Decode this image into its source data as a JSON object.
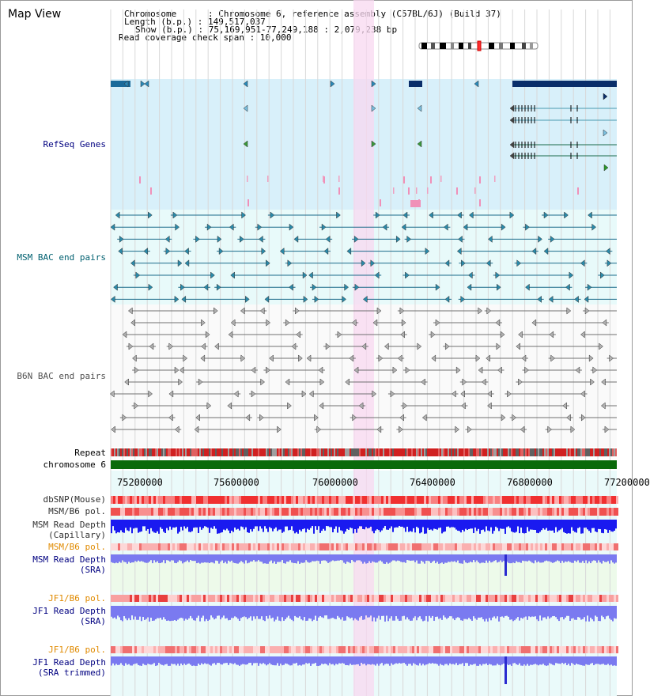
{
  "header": {
    "title": "Map View",
    "info_lines": [
      "Chromosome      : Chromosome 6, reference assembly (C57BL/6J) (Build 37)",
      "Length (b.p.) : 149,517,037",
      "Show (b.p.) : 75,169,951-77,249,188 : 2,079,238 bp",
      "Read coverage check span : 10,000"
    ]
  },
  "tracks": {
    "refseq_label": "RefSeq Genes",
    "msm_bac_label": "MSM BAC end pairs",
    "b6n_bac_label": "B6N BAC end pairs",
    "repeat_label": "Repeat",
    "chromosome_label": "chromosome 6",
    "dbsnp_label": "dbSNP(Mouse)",
    "msm_b6_pol_label": "MSM/B6 pol.",
    "msm_read_depth_cap_label": "MSM Read Depth",
    "msm_read_depth_cap_sub": "(Capillary)",
    "msm_b6_pol_label2": "MSM/B6 pol.",
    "msm_read_depth_sra_label": "MSM Read Depth",
    "msm_read_depth_sra_sub": "(SRA)",
    "jf1_b6_pol_label": "JF1/B6 pol.",
    "jf1_read_depth_sra_label": "JF1 Read Depth",
    "jf1_read_depth_sra_sub": "(SRA)",
    "jf1_b6_pol_label2": "JF1/B6 pol.",
    "jf1_read_depth_trim_label": "JF1 Read Depth",
    "jf1_read_depth_trim_sub": "(SRA trimmed)"
  },
  "axis": {
    "ticks": [
      "75200000",
      "75600000",
      "76000000",
      "76400000",
      "76800000",
      "77200000"
    ]
  },
  "colors": {
    "refseq_bg": "#d8f0fa",
    "bac_bg": "#e8fafa",
    "highlight": "#f8d8f0",
    "msm_bac": "#1a6a8a",
    "b6n_bac": "#707070",
    "refseq_dark": "#0a2e6a",
    "chromosome": "#0a6a0a",
    "label_blue": "#000080",
    "label_teal": "#006070",
    "label_grey": "#505050",
    "label_orange": "#e08a00",
    "depth_blue": "#1a1af0",
    "depth_light": "#7a7af0"
  }
}
